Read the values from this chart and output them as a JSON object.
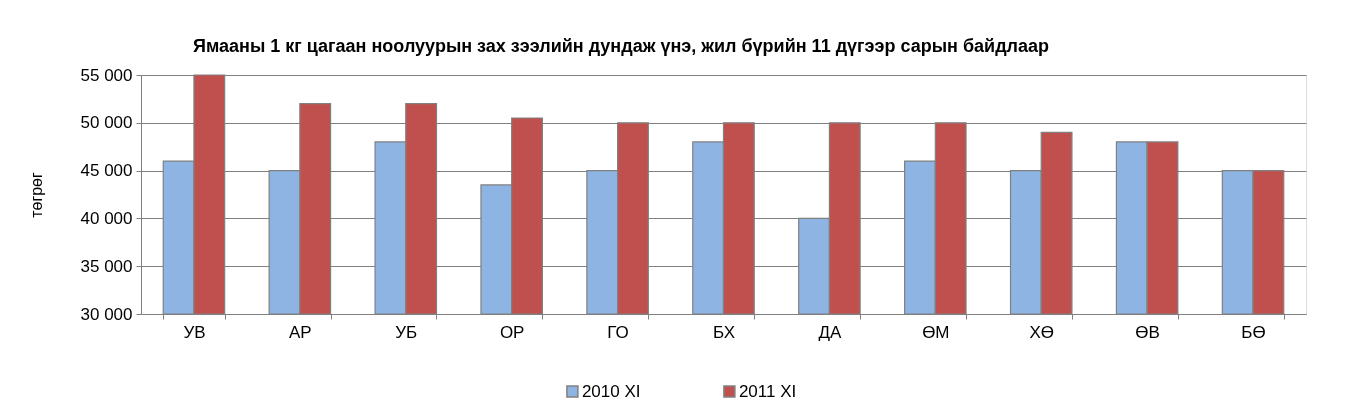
{
  "chart_data": {
    "type": "bar",
    "title": "Ямааны 1 кг цагаан ноолуурын зах зээлийн дундаж үнэ, жил бүрийн 11 дүгээр сарын байдлаар",
    "ylabel": "төгрөг",
    "categories": [
      "УВ",
      "АР",
      "УБ",
      "ОР",
      "ГО",
      "БХ",
      "ДА",
      "ӨМ",
      "ХӨ",
      "ӨВ",
      "БӨ"
    ],
    "series": [
      {
        "name": "2010 XI",
        "color": "#8eb4e3",
        "values": [
          46000,
          45000,
          48000,
          43500,
          45000,
          48000,
          40000,
          46000,
          45000,
          48000,
          45000
        ]
      },
      {
        "name": "2011 XI",
        "color": "#c0504d",
        "values": [
          55000,
          52000,
          52000,
          50500,
          50000,
          50000,
          50000,
          50000,
          49000,
          48000,
          45000
        ]
      }
    ],
    "ylim": [
      30000,
      55000
    ],
    "yticks": [
      {
        "value": 30000,
        "label": "30 000"
      },
      {
        "value": 35000,
        "label": "35 000"
      },
      {
        "value": 40000,
        "label": "40 000"
      },
      {
        "value": 45000,
        "label": "45 000"
      },
      {
        "value": 50000,
        "label": "50 000"
      },
      {
        "value": 55000,
        "label": "55 000"
      }
    ],
    "grid": "y",
    "legend": "bottom"
  }
}
